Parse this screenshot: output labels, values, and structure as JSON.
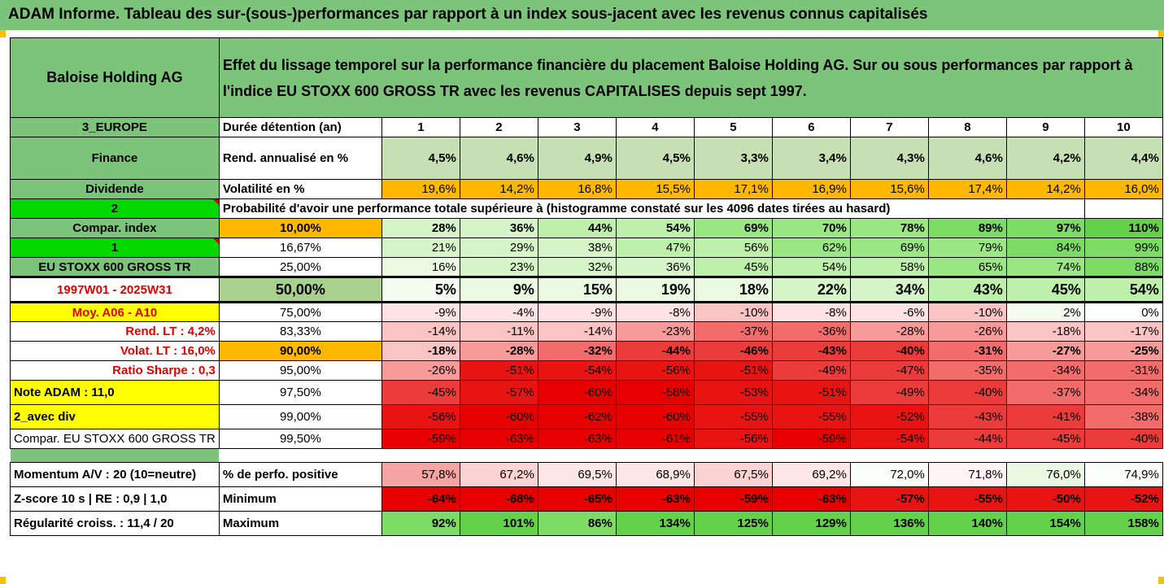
{
  "title": "ADAM Informe. Tableau des sur-(sous-)performances par rapport à un index sous-jacent avec les revenus connus capitalisés",
  "header": {
    "company": "Baloise Holding AG",
    "description": "Effet du lissage temporel sur la performance financière du placement Baloise Holding AG. Sur ou sous performances par rapport à l'indice EU STOXX 600 GROSS TR avec les revenus CAPITALISES depuis sept 1997."
  },
  "left_labels": {
    "region": "3_EUROPE",
    "sector": "Finance",
    "dividend": "Dividende",
    "code2": "2",
    "compar_index": "Compar. index",
    "code1": "1",
    "index_name": "EU STOXX 600 GROSS TR",
    "period": "1997W01 - 2025W31",
    "moy": "Moy. A06 - A10",
    "rend_lt": "Rend. LT :    4,2%",
    "volat_lt": "Volat. LT :   16,0%",
    "ratio_sharpe": "Ratio Sharpe :   0,3",
    "note_adam": "Note ADAM : 11,0",
    "avec_div": "2_avec div",
    "compar_index_full": "Compar. EU STOXX 600 GROSS TR",
    "momentum": "Momentum A/V : 20 (10=neutre)",
    "zscore": "Z-score 10 s  |  RE : 0,9  |  1,0",
    "regularite": "Régularité croiss. : 11,4 / 20"
  },
  "row_labels": {
    "duration": "Durée détention (an)",
    "rend": "Rend. annualisé en %",
    "volat": "Volatilité en %",
    "probability": "Probabilité d'avoir une performance totale supérieure à (histogramme constaté sur les 4096 dates tirées au hasard)",
    "pct_positive": "% de perfo. positive",
    "minimum": "Minimum",
    "maximum": "Maximum"
  },
  "years": [
    "1",
    "2",
    "3",
    "4",
    "5",
    "6",
    "7",
    "8",
    "9",
    "10"
  ],
  "rend": [
    "4,5%",
    "4,6%",
    "4,9%",
    "4,5%",
    "3,3%",
    "3,4%",
    "4,3%",
    "4,6%",
    "4,2%",
    "4,4%"
  ],
  "volat": [
    "19,6%",
    "14,2%",
    "16,8%",
    "15,5%",
    "17,1%",
    "16,9%",
    "15,6%",
    "17,4%",
    "14,2%",
    "16,0%"
  ],
  "prob_rows": [
    {
      "level": "10,00%",
      "values": [
        "28%",
        "36%",
        "44%",
        "54%",
        "69%",
        "70%",
        "78%",
        "89%",
        "97%",
        "110%"
      ]
    },
    {
      "level": "16,67%",
      "values": [
        "21%",
        "29%",
        "38%",
        "47%",
        "56%",
        "62%",
        "69%",
        "79%",
        "84%",
        "99%"
      ]
    },
    {
      "level": "25,00%",
      "values": [
        "16%",
        "23%",
        "32%",
        "36%",
        "45%",
        "54%",
        "58%",
        "65%",
        "74%",
        "88%"
      ]
    },
    {
      "level": "50,00%",
      "values": [
        "5%",
        "9%",
        "15%",
        "19%",
        "18%",
        "22%",
        "34%",
        "43%",
        "45%",
        "54%"
      ]
    },
    {
      "level": "75,00%",
      "values": [
        "-9%",
        "-4%",
        "-9%",
        "-8%",
        "-10%",
        "-8%",
        "-6%",
        "-10%",
        "2%",
        "0%"
      ]
    },
    {
      "level": "83,33%",
      "values": [
        "-14%",
        "-11%",
        "-14%",
        "-23%",
        "-37%",
        "-36%",
        "-28%",
        "-26%",
        "-18%",
        "-17%"
      ]
    },
    {
      "level": "90,00%",
      "values": [
        "-18%",
        "-28%",
        "-32%",
        "-44%",
        "-46%",
        "-43%",
        "-40%",
        "-31%",
        "-27%",
        "-25%"
      ]
    },
    {
      "level": "95,00%",
      "values": [
        "-26%",
        "-51%",
        "-54%",
        "-56%",
        "-51%",
        "-49%",
        "-47%",
        "-35%",
        "-34%",
        "-31%"
      ]
    },
    {
      "level": "97,50%",
      "values": [
        "-45%",
        "-57%",
        "-60%",
        "-58%",
        "-53%",
        "-51%",
        "-49%",
        "-40%",
        "-37%",
        "-34%"
      ]
    },
    {
      "level": "99,00%",
      "values": [
        "-56%",
        "-60%",
        "-62%",
        "-60%",
        "-55%",
        "-55%",
        "-52%",
        "-43%",
        "-41%",
        "-38%"
      ]
    },
    {
      "level": "99,50%",
      "values": [
        "-59%",
        "-63%",
        "-63%",
        "-61%",
        "-56%",
        "-59%",
        "-54%",
        "-44%",
        "-45%",
        "-40%"
      ]
    }
  ],
  "pct_positive": [
    "57,8%",
    "67,2%",
    "69,5%",
    "68,9%",
    "67,5%",
    "69,2%",
    "72,0%",
    "71,8%",
    "76,0%",
    "74,9%"
  ],
  "minimum": [
    "-64%",
    "-68%",
    "-65%",
    "-63%",
    "-59%",
    "-63%",
    "-57%",
    "-55%",
    "-50%",
    "-52%"
  ],
  "maximum": [
    "92%",
    "101%",
    "86%",
    "134%",
    "125%",
    "129%",
    "136%",
    "140%",
    "154%",
    "158%"
  ],
  "colors": {
    "header_green": "#7cc47a",
    "bright_green": "#00d800",
    "yellow": "#ffff00",
    "orange": "#ffb800",
    "rend_green": "#c6e0b4",
    "gray_green": "#a9d08e"
  }
}
